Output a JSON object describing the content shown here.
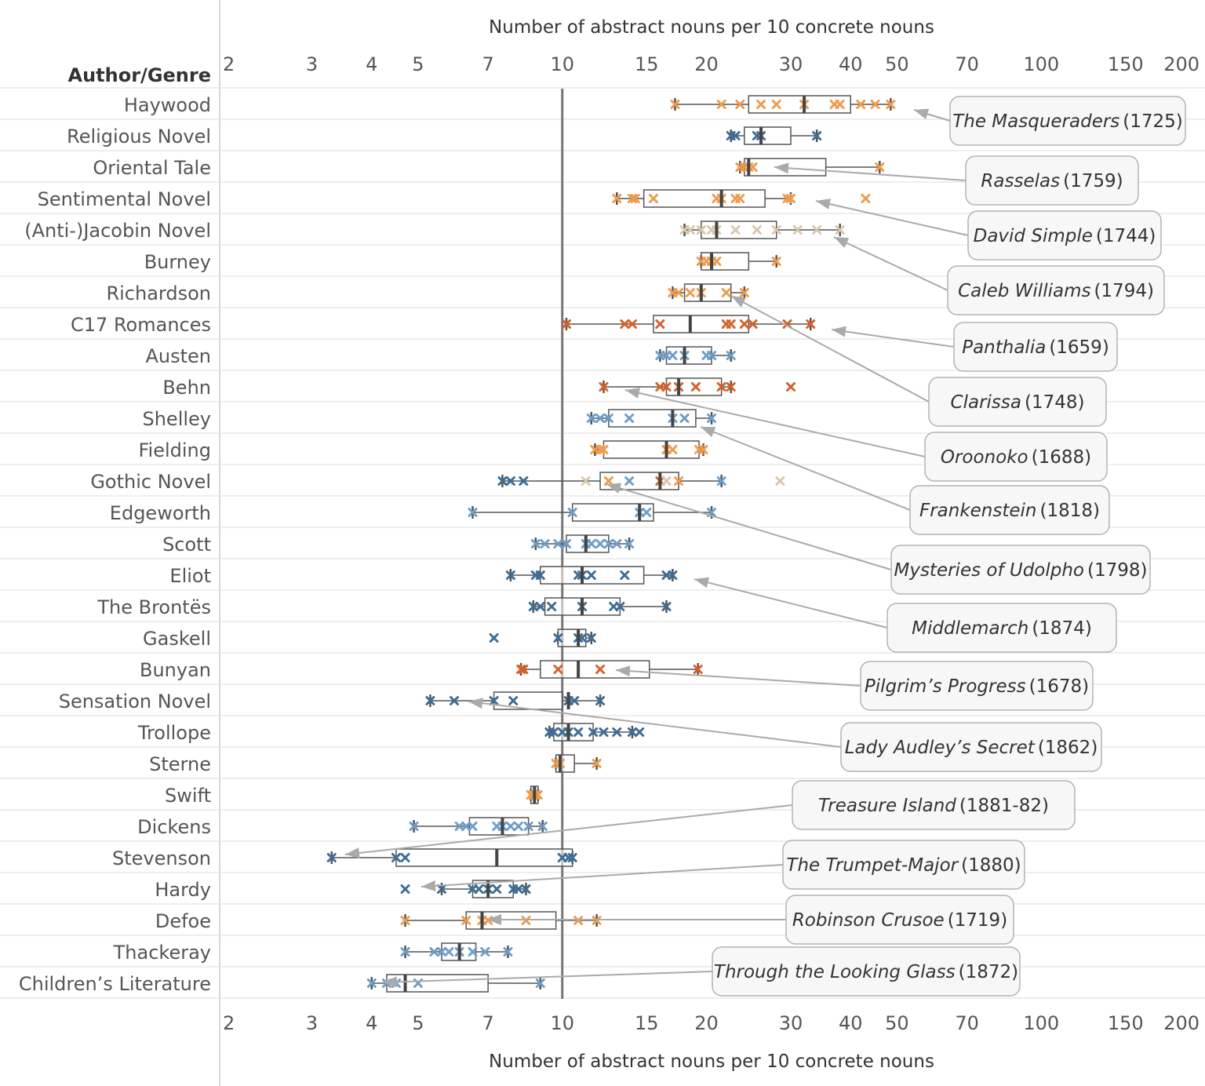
{
  "chart_data": {
    "type": "boxplot",
    "xlabel": "Number of abstract nouns per 10 concrete nouns",
    "ylabel": "Author/Genre",
    "x_scale": "log",
    "xlim": [
      2,
      200
    ],
    "x_ticks": [
      2,
      3,
      4,
      5,
      7,
      10,
      15,
      20,
      30,
      40,
      50,
      70,
      100,
      150,
      200
    ],
    "reference_line": 10,
    "grid": "horizontal row separators",
    "colors": {
      "c18_dark": "#d4622b",
      "c18_mid": "#ee9b4f",
      "c18_light": "#d9c7ad",
      "c19_dark": "#3f6d95",
      "c19_mid": "#6f9ec8",
      "c19_light": "#a9c9e2",
      "box": "#555555",
      "reference": "#777777"
    },
    "categories": [
      {
        "name": "Haywood",
        "whisker": [
          17.2,
          48.5
        ],
        "box": [
          24.5,
          40
        ],
        "median": 32,
        "color": "c18_mid",
        "points": [
          17.2,
          21.5,
          23.5,
          26,
          28,
          32,
          37,
          38,
          42,
          45,
          48.5
        ]
      },
      {
        "name": "Religious Novel",
        "whisker": [
          22.5,
          34
        ],
        "box": [
          24,
          30
        ],
        "median": 26,
        "color": "c19_dark",
        "points": [
          22.5,
          23,
          25.5,
          26,
          34
        ]
      },
      {
        "name": "Oriental Tale",
        "whisker": [
          23.5,
          46
        ],
        "box": [
          24,
          35.5
        ],
        "median": 24.5,
        "color": "c18_mid",
        "points": [
          23.5,
          24,
          24.5,
          25,
          46
        ]
      },
      {
        "name": "Sentimental Novel",
        "whisker": [
          13,
          30
        ],
        "box": [
          14.8,
          26.5
        ],
        "median": 21.5,
        "color": "c18_mid",
        "points": [
          13,
          14,
          14.2,
          15.5,
          21,
          21.5,
          23,
          23.5,
          29.5,
          30,
          43
        ]
      },
      {
        "name": "(Anti-)Jacobin Novel",
        "whisker": [
          18,
          38
        ],
        "box": [
          19.5,
          28
        ],
        "median": 21,
        "color": "c18_light",
        "points": [
          18,
          18.5,
          19.5,
          20.5,
          21,
          23,
          25.5,
          28,
          31,
          34,
          38
        ]
      },
      {
        "name": "Burney",
        "whisker": [
          19.5,
          28
        ],
        "box": [
          19.5,
          24.5
        ],
        "median": 20.5,
        "color": "c18_mid",
        "points": [
          19.5,
          20,
          20.5,
          21,
          28
        ]
      },
      {
        "name": "Richardson",
        "whisker": [
          17,
          24
        ],
        "box": [
          18,
          22.5
        ],
        "median": 19.5,
        "color": "c18_mid",
        "points": [
          17,
          17.5,
          18.5,
          19.5,
          22,
          24
        ]
      },
      {
        "name": "C17 Romances",
        "whisker": [
          10.2,
          33
        ],
        "box": [
          15.5,
          24.5
        ],
        "median": 18.5,
        "color": "c18_dark",
        "points": [
          10.2,
          13.5,
          14,
          16,
          22,
          22.5,
          24,
          25,
          29.5,
          33
        ]
      },
      {
        "name": "Austen",
        "whisker": [
          16,
          22.5
        ],
        "box": [
          16.5,
          20.5
        ],
        "median": 18,
        "color": "c19_mid",
        "points": [
          16,
          16.5,
          17,
          18,
          20,
          20.5,
          22.5
        ]
      },
      {
        "name": "Behn",
        "whisker": [
          12.2,
          22.5
        ],
        "box": [
          16.5,
          21.5
        ],
        "median": 17.5,
        "color": "c18_dark",
        "points": [
          12.2,
          16,
          16.5,
          17.5,
          19,
          21.5,
          22.5,
          30
        ]
      },
      {
        "name": "Shelley",
        "whisker": [
          11.5,
          20.5
        ],
        "box": [
          12.5,
          19
        ],
        "median": 17,
        "color": "c19_mid",
        "points": [
          11.5,
          12,
          12.5,
          13.8,
          17,
          18,
          20.5
        ]
      },
      {
        "name": "Fielding",
        "whisker": [
          11.7,
          19.7
        ],
        "box": [
          12.2,
          19.3
        ],
        "median": 16.5,
        "color": "c18_mid",
        "points": [
          11.7,
          12,
          12.2,
          16.5,
          17,
          19.3,
          19.7
        ]
      },
      {
        "name": "Gothic Novel",
        "whisker": [
          7.5,
          21.5
        ],
        "box": [
          12,
          17.5
        ],
        "median": 16,
        "color": "mixed",
        "points": [
          7.5,
          7.8,
          8.3,
          11.2,
          12.5,
          13.8,
          16,
          16.5,
          17.5,
          21.5,
          28.5
        ]
      },
      {
        "name": "Edgeworth",
        "whisker": [
          6.5,
          20.5
        ],
        "box": [
          10.5,
          15.5
        ],
        "median": 14.5,
        "color": "c19_mid",
        "points": [
          6.5,
          10.5,
          14.5,
          15,
          20.5
        ]
      },
      {
        "name": "Scott",
        "whisker": [
          8.8,
          13.8
        ],
        "box": [
          10.2,
          12.5
        ],
        "median": 11.2,
        "color": "c19_mid",
        "points": [
          8.8,
          9.2,
          9.8,
          10.2,
          11.2,
          11.5,
          12,
          12.5,
          13,
          13.8
        ]
      },
      {
        "name": "Eliot",
        "whisker": [
          7.8,
          17
        ],
        "box": [
          9,
          14.8
        ],
        "median": 11,
        "color": "c19_dark",
        "points": [
          7.8,
          8.8,
          9,
          10.8,
          11,
          11.5,
          13.5,
          16.5,
          17
        ]
      },
      {
        "name": "The Brontës",
        "whisker": [
          8.7,
          16.5
        ],
        "box": [
          9.2,
          13.2
        ],
        "median": 11,
        "color": "c19_dark",
        "points": [
          8.7,
          9,
          9.5,
          11,
          12.8,
          13.2,
          16.5
        ]
      },
      {
        "name": "Gaskell",
        "whisker": [
          9.8,
          11.5
        ],
        "box": [
          9.8,
          11.2
        ],
        "median": 10.8,
        "color": "c19_dark",
        "points": [
          7.2,
          9.8,
          10.8,
          11,
          11.5
        ]
      },
      {
        "name": "Bunyan",
        "whisker": [
          8.2,
          19.2
        ],
        "box": [
          9,
          15.2
        ],
        "median": 10.8,
        "color": "c18_dark",
        "points": [
          8.2,
          8.3,
          9.8,
          12,
          19.2
        ]
      },
      {
        "name": "Sensation Novel",
        "whisker": [
          5.3,
          12
        ],
        "box": [
          7.2,
          10
        ],
        "median": 10.3,
        "color": "c19_dark",
        "points": [
          5.3,
          5.95,
          7.2,
          7.9,
          10.3,
          10.6,
          12
        ]
      },
      {
        "name": "Trollope",
        "whisker": [
          9.4,
          14
        ],
        "box": [
          9.6,
          11.6
        ],
        "median": 10.3,
        "color": "c19_dark",
        "points": [
          9.4,
          9.6,
          10,
          10.3,
          10.8,
          11.6,
          12.2,
          13,
          14,
          14.5
        ]
      },
      {
        "name": "Sterne",
        "whisker": [
          9.7,
          11.8
        ],
        "box": [
          9.7,
          10.6
        ],
        "median": 9.9,
        "color": "c18_mid",
        "points": [
          9.7,
          9.9,
          11.8
        ]
      },
      {
        "name": "Swift",
        "whisker": [
          8.6,
          8.9
        ],
        "box": [
          8.6,
          8.9
        ],
        "median": 8.75,
        "color": "c18_mid",
        "points": [
          8.6,
          8.7,
          8.8,
          8.9
        ]
      },
      {
        "name": "Dickens",
        "whisker": [
          4.9,
          9.1
        ],
        "box": [
          6.4,
          8.5
        ],
        "median": 7.5,
        "color": "c19_mid",
        "points": [
          4.9,
          6.1,
          6.3,
          6.5,
          7.3,
          7.5,
          7.8,
          8.1,
          8.5,
          9.1
        ]
      },
      {
        "name": "Stevenson",
        "whisker": [
          3.3,
          10.5
        ],
        "box": [
          4.5,
          10.5
        ],
        "median": 7.3,
        "color": "c19_dark",
        "points": [
          3.3,
          4.5,
          4.7,
          10,
          10.3,
          10.5
        ]
      },
      {
        "name": "Hardy",
        "whisker": [
          5.6,
          8.4
        ],
        "box": [
          6.5,
          7.9
        ],
        "median": 7,
        "color": "c19_dark",
        "points": [
          4.7,
          5.6,
          6.5,
          6.7,
          7,
          7.3,
          7.9,
          8.1,
          8.4
        ]
      },
      {
        "name": "Defoe",
        "whisker": [
          4.7,
          11.8
        ],
        "box": [
          6.3,
          9.7
        ],
        "median": 6.8,
        "color": "c18_mid",
        "points": [
          4.7,
          6.3,
          6.8,
          7.0,
          8.4,
          10.8,
          11.8
        ]
      },
      {
        "name": "Thackeray",
        "whisker": [
          4.7,
          7.7
        ],
        "box": [
          5.6,
          6.6
        ],
        "median": 6.1,
        "color": "c19_mid",
        "points": [
          4.7,
          5.4,
          5.6,
          5.8,
          6.1,
          6.5,
          6.9,
          7.7
        ]
      },
      {
        "name": "Children’s Literature",
        "whisker": [
          4.0,
          9.0
        ],
        "box": [
          4.3,
          7.0
        ],
        "median": 4.7,
        "color": "c19_mid",
        "points": [
          4.0,
          4.3,
          4.5,
          5.0,
          9.0
        ]
      }
    ],
    "annotations": [
      {
        "title": "The Masqueraders",
        "year": "(1725)"
      },
      {
        "title": "Rasselas",
        "year": "(1759)"
      },
      {
        "title": "David Simple",
        "year": "(1744)"
      },
      {
        "title": "Caleb Williams",
        "year": "(1794)"
      },
      {
        "title": "Panthalia",
        "year": "(1659)"
      },
      {
        "title": "Clarissa",
        "year": "(1748)"
      },
      {
        "title": "Oroonoko",
        "year": "(1688)"
      },
      {
        "title": "Frankenstein",
        "year": "(1818)"
      },
      {
        "title": "Mysteries of Udolpho",
        "year": "(1798)"
      },
      {
        "title": "Middlemarch",
        "year": "(1874)"
      },
      {
        "title": "Pilgrim’s Progress",
        "year": "(1678)"
      },
      {
        "title": "Lady Audley’s Secret",
        "year": "(1862)"
      },
      {
        "title": "Treasure Island",
        "year": "(1881-82)"
      },
      {
        "title": "The Trumpet-Major",
        "year": "(1880)"
      },
      {
        "title": "Robinson Crusoe",
        "year": "(1719)"
      },
      {
        "title": "Through the Looking Glass",
        "year": "(1872)"
      }
    ]
  }
}
